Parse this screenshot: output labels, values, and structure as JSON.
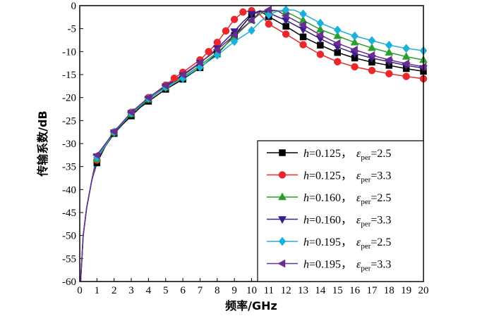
{
  "chart_data": {
    "type": "line",
    "title": "",
    "xlabel": "频率/GHz",
    "ylabel": "传输系数/dB",
    "xlim": [
      0,
      20
    ],
    "ylim": [
      -60,
      0
    ],
    "xticks": [
      0,
      1,
      2,
      3,
      4,
      5,
      6,
      7,
      8,
      9,
      10,
      11,
      12,
      13,
      14,
      15,
      16,
      17,
      18,
      19,
      20
    ],
    "yticks": [
      0,
      -5,
      -10,
      -15,
      -20,
      -25,
      -30,
      -35,
      -40,
      -45,
      -50,
      -55,
      -60
    ],
    "grid": false,
    "legend_position": "bottom-right",
    "series": [
      {
        "name": "h=0.125，εper=2.5",
        "legend_h": "h",
        "legend_val": "=0.125，",
        "legend_eps": "ε",
        "legend_sub": "per",
        "legend_eq": "=2.5",
        "color": "#000000",
        "marker": "square",
        "curve": [
          [
            0.05,
            -60
          ],
          [
            0.2,
            -50
          ],
          [
            0.4,
            -44
          ],
          [
            0.7,
            -38
          ],
          [
            1,
            -34.2
          ],
          [
            1.5,
            -30.5
          ],
          [
            2,
            -27.8
          ],
          [
            2.5,
            -25.8
          ],
          [
            3,
            -24
          ],
          [
            3.5,
            -22.2
          ],
          [
            4,
            -20.8
          ],
          [
            5,
            -18.2
          ],
          [
            6,
            -16
          ],
          [
            7,
            -13.5
          ],
          [
            8,
            -10.5
          ],
          [
            9,
            -6.5
          ],
          [
            9.5,
            -4.2
          ],
          [
            10,
            -2
          ],
          [
            10.5,
            -1.2
          ],
          [
            11,
            -2.4
          ],
          [
            12,
            -4.5
          ],
          [
            13,
            -6.8
          ],
          [
            14,
            -8.6
          ],
          [
            15,
            -10.2
          ],
          [
            16,
            -11.4
          ],
          [
            17,
            -12.3
          ],
          [
            18,
            -13
          ],
          [
            19,
            -13.7
          ],
          [
            20,
            -14.3
          ]
        ],
        "markers": [
          [
            1,
            -34.2
          ],
          [
            2,
            -27.8
          ],
          [
            3,
            -24
          ],
          [
            4,
            -20.8
          ],
          [
            5,
            -18.2
          ],
          [
            6,
            -16
          ],
          [
            7,
            -13.5
          ],
          [
            8,
            -10.5
          ],
          [
            9,
            -6.5
          ],
          [
            10,
            -2
          ],
          [
            11,
            -2.4
          ],
          [
            12,
            -4.5
          ],
          [
            13,
            -6.8
          ],
          [
            14,
            -8.6
          ],
          [
            15,
            -10.2
          ],
          [
            16,
            -11.4
          ],
          [
            17,
            -12.3
          ],
          [
            18,
            -13
          ],
          [
            19,
            -13.7
          ],
          [
            20,
            -14.3
          ]
        ]
      },
      {
        "name": "h=0.125，εper=3.3",
        "legend_h": "h",
        "legend_val": "=0.125，",
        "legend_eps": "ε",
        "legend_sub": "per",
        "legend_eq": "=3.3",
        "color": "#e8282b",
        "marker": "circle",
        "curve": [
          [
            0.05,
            -60
          ],
          [
            0.2,
            -50
          ],
          [
            0.4,
            -44
          ],
          [
            0.7,
            -38
          ],
          [
            1,
            -33.6
          ],
          [
            1.5,
            -30.4
          ],
          [
            2,
            -27.5
          ],
          [
            3,
            -23.2
          ],
          [
            4,
            -20
          ],
          [
            5,
            -17.3
          ],
          [
            5.5,
            -15.8
          ],
          [
            6,
            -14.5
          ],
          [
            7,
            -11.8
          ],
          [
            7.5,
            -10
          ],
          [
            8,
            -8
          ],
          [
            8.5,
            -5.5
          ],
          [
            9,
            -3
          ],
          [
            9.5,
            -1.4
          ],
          [
            10,
            -1.1
          ],
          [
            10.5,
            -2
          ],
          [
            11,
            -4
          ],
          [
            12,
            -6.2
          ],
          [
            13,
            -8.5
          ],
          [
            14,
            -10.6
          ],
          [
            15,
            -12.2
          ],
          [
            16,
            -13.3
          ],
          [
            17,
            -14.1
          ],
          [
            18,
            -14.8
          ],
          [
            19,
            -15.4
          ],
          [
            20,
            -15.9
          ]
        ],
        "markers": [
          [
            1,
            -33.6
          ],
          [
            2,
            -27.5
          ],
          [
            3,
            -23.2
          ],
          [
            4,
            -20
          ],
          [
            5,
            -17.3
          ],
          [
            5.5,
            -15.8
          ],
          [
            6,
            -14.5
          ],
          [
            7,
            -11.8
          ],
          [
            7.5,
            -10
          ],
          [
            8,
            -8
          ],
          [
            8.5,
            -5.5
          ],
          [
            9,
            -3
          ],
          [
            9.5,
            -1.4
          ],
          [
            10,
            -1.1
          ],
          [
            11,
            -4
          ],
          [
            12,
            -6.2
          ],
          [
            13,
            -8.5
          ],
          [
            14,
            -10.6
          ],
          [
            15,
            -12.2
          ],
          [
            16,
            -13.3
          ],
          [
            17,
            -14.1
          ],
          [
            18,
            -14.8
          ],
          [
            19,
            -15.4
          ],
          [
            20,
            -15.9
          ]
        ]
      },
      {
        "name": "h=0.160，εper=2.5",
        "legend_h": "h",
        "legend_val": "=0.160，",
        "legend_eps": "ε",
        "legend_sub": "per",
        "legend_eq": "=2.5",
        "color": "#2aa02a",
        "marker": "triangle-up",
        "curve": [
          [
            0.05,
            -60
          ],
          [
            0.2,
            -50
          ],
          [
            0.4,
            -44
          ],
          [
            0.7,
            -38
          ],
          [
            1,
            -33.4
          ],
          [
            1.5,
            -30.4
          ],
          [
            2,
            -27.6
          ],
          [
            3,
            -23.6
          ],
          [
            4,
            -20.4
          ],
          [
            5,
            -17.8
          ],
          [
            6,
            -15.6
          ],
          [
            7,
            -13
          ],
          [
            8,
            -10.2
          ],
          [
            9,
            -6.8
          ],
          [
            10,
            -3.2
          ],
          [
            10.5,
            -1.8
          ],
          [
            11,
            -1.2
          ],
          [
            11.5,
            -1.1
          ],
          [
            12,
            -1.3
          ],
          [
            13,
            -3.2
          ],
          [
            14,
            -5.2
          ],
          [
            15,
            -6.6
          ],
          [
            16,
            -8
          ],
          [
            17,
            -9.2
          ],
          [
            18,
            -10.2
          ],
          [
            19,
            -11.1
          ],
          [
            20,
            -11.8
          ]
        ],
        "markers": [
          [
            1,
            -33.4
          ],
          [
            2,
            -27.6
          ],
          [
            3,
            -23.6
          ],
          [
            4,
            -20.4
          ],
          [
            5,
            -17.8
          ],
          [
            6,
            -15.6
          ],
          [
            7,
            -13
          ],
          [
            8,
            -10.2
          ],
          [
            9,
            -6.8
          ],
          [
            10,
            -3.2
          ],
          [
            11,
            -1.2
          ],
          [
            12,
            -1.3
          ],
          [
            13,
            -3.2
          ],
          [
            14,
            -5.2
          ],
          [
            15,
            -6.6
          ],
          [
            16,
            -8
          ],
          [
            17,
            -9.2
          ],
          [
            18,
            -10.2
          ],
          [
            19,
            -11.1
          ],
          [
            20,
            -11.8
          ]
        ]
      },
      {
        "name": "h=0.160，εper=3.3",
        "legend_h": "h",
        "legend_val": "=0.160，",
        "legend_eps": "ε",
        "legend_sub": "per",
        "legend_eq": "=3.3",
        "color": "#3a1f8c",
        "marker": "triangle-down",
        "curve": [
          [
            0.05,
            -60
          ],
          [
            0.2,
            -50
          ],
          [
            0.4,
            -44
          ],
          [
            0.7,
            -38
          ],
          [
            1,
            -32.8
          ],
          [
            1.5,
            -30.2
          ],
          [
            2,
            -27.6
          ],
          [
            3,
            -23.4
          ],
          [
            4,
            -20.3
          ],
          [
            5,
            -17.6
          ],
          [
            6,
            -15.2
          ],
          [
            7,
            -12.5
          ],
          [
            8,
            -9.3
          ],
          [
            9,
            -5.6
          ],
          [
            9.5,
            -3.5
          ],
          [
            10,
            -1.8
          ],
          [
            10.5,
            -1.1
          ],
          [
            11,
            -1.6
          ],
          [
            12,
            -3.2
          ],
          [
            13,
            -5.2
          ],
          [
            14,
            -7.2
          ],
          [
            15,
            -9
          ],
          [
            16,
            -10.4
          ],
          [
            17,
            -11.4
          ],
          [
            18,
            -12.2
          ],
          [
            19,
            -13
          ],
          [
            20,
            -13.6
          ]
        ],
        "markers": [
          [
            1,
            -32.8
          ],
          [
            2,
            -27.6
          ],
          [
            3,
            -23.4
          ],
          [
            4,
            -20.3
          ],
          [
            5,
            -17.6
          ],
          [
            6,
            -15.2
          ],
          [
            7,
            -12.5
          ],
          [
            8,
            -9.3
          ],
          [
            9,
            -5.6
          ],
          [
            10,
            -1.8
          ],
          [
            11,
            -1.6
          ],
          [
            12,
            -3.2
          ],
          [
            13,
            -5.2
          ],
          [
            14,
            -7.2
          ],
          [
            15,
            -9
          ],
          [
            16,
            -10.4
          ],
          [
            17,
            -11.4
          ],
          [
            18,
            -12.2
          ],
          [
            19,
            -13
          ],
          [
            20,
            -13.6
          ]
        ]
      },
      {
        "name": "h=0.195，εper=2.5",
        "legend_h": "h",
        "legend_val": "=0.195，",
        "legend_eps": "ε",
        "legend_sub": "per",
        "legend_eq": "=2.5",
        "color": "#19b1d8",
        "marker": "diamond",
        "curve": [
          [
            0.05,
            -60
          ],
          [
            0.2,
            -50
          ],
          [
            0.4,
            -44
          ],
          [
            0.7,
            -38
          ],
          [
            1,
            -33
          ],
          [
            1.5,
            -30.3
          ],
          [
            2,
            -27.5
          ],
          [
            3,
            -23.4
          ],
          [
            4,
            -20.2
          ],
          [
            5,
            -17.8
          ],
          [
            6,
            -15.8
          ],
          [
            7,
            -13.4
          ],
          [
            8,
            -10.8
          ],
          [
            9,
            -7.8
          ],
          [
            10,
            -5.4
          ],
          [
            10.5,
            -3.5
          ],
          [
            11,
            -2
          ],
          [
            11.5,
            -1.2
          ],
          [
            12,
            -0.9
          ],
          [
            12.5,
            -1
          ],
          [
            13,
            -1.8
          ],
          [
            14,
            -3.8
          ],
          [
            15,
            -5.3
          ],
          [
            16,
            -6.6
          ],
          [
            17,
            -7.6
          ],
          [
            18,
            -8.6
          ],
          [
            19,
            -9.3
          ],
          [
            20,
            -9.8
          ]
        ],
        "markers": [
          [
            1,
            -33
          ],
          [
            2,
            -27.5
          ],
          [
            3,
            -23.4
          ],
          [
            4,
            -20.2
          ],
          [
            5,
            -17.8
          ],
          [
            6,
            -15.8
          ],
          [
            7,
            -13.4
          ],
          [
            8,
            -10.8
          ],
          [
            9,
            -7.8
          ],
          [
            10,
            -5.4
          ],
          [
            11,
            -2
          ],
          [
            12,
            -0.9
          ],
          [
            13,
            -1.8
          ],
          [
            14,
            -3.8
          ],
          [
            15,
            -5.3
          ],
          [
            16,
            -6.6
          ],
          [
            17,
            -7.6
          ],
          [
            18,
            -8.6
          ],
          [
            19,
            -9.3
          ],
          [
            20,
            -9.8
          ]
        ]
      },
      {
        "name": "h=0.195，εper=3.3",
        "legend_h": "h",
        "legend_val": "=0.195，",
        "legend_eps": "ε",
        "legend_sub": "per",
        "legend_eq": "=3.3",
        "color": "#6a2c91",
        "marker": "triangle-left",
        "curve": [
          [
            0.05,
            -60
          ],
          [
            0.2,
            -50
          ],
          [
            0.4,
            -44
          ],
          [
            0.7,
            -38
          ],
          [
            1,
            -32.5
          ],
          [
            1.5,
            -30
          ],
          [
            2,
            -27.4
          ],
          [
            3,
            -23.2
          ],
          [
            4,
            -20
          ],
          [
            5,
            -17.4
          ],
          [
            6,
            -15
          ],
          [
            7,
            -12.4
          ],
          [
            8,
            -9.6
          ],
          [
            9,
            -6.4
          ],
          [
            10,
            -3.2
          ],
          [
            10.5,
            -1.4
          ],
          [
            11,
            -0.9
          ],
          [
            11.5,
            -1.1
          ],
          [
            12,
            -2.2
          ],
          [
            13,
            -4.2
          ],
          [
            14,
            -6.4
          ],
          [
            15,
            -8.2
          ],
          [
            16,
            -9.6
          ],
          [
            17,
            -10.8
          ],
          [
            18,
            -11.8
          ],
          [
            19,
            -12.6
          ],
          [
            20,
            -13.3
          ]
        ],
        "markers": [
          [
            1,
            -32.5
          ],
          [
            2,
            -27.4
          ],
          [
            3,
            -23.2
          ],
          [
            4,
            -20
          ],
          [
            5,
            -17.4
          ],
          [
            6,
            -15
          ],
          [
            7,
            -12.4
          ],
          [
            8,
            -9.6
          ],
          [
            9,
            -6.4
          ],
          [
            10,
            -3.2
          ],
          [
            11,
            -0.9
          ],
          [
            12,
            -2.2
          ],
          [
            13,
            -4.2
          ],
          [
            14,
            -6.4
          ],
          [
            15,
            -8.2
          ],
          [
            16,
            -9.6
          ],
          [
            17,
            -10.8
          ],
          [
            18,
            -11.8
          ],
          [
            19,
            -12.6
          ],
          [
            20,
            -13.3
          ]
        ]
      }
    ]
  }
}
